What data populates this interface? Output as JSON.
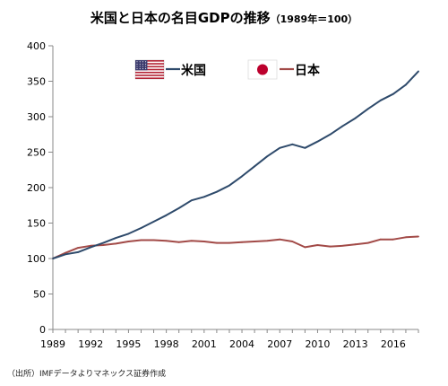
{
  "title": "米国と日本の名目GDPの推移",
  "subtitle": "（1989年＝100）",
  "source": "（出所）IMFデータよりマネックス証券作成",
  "chart_data": {
    "type": "line",
    "title": "米国と日本の名目GDPの推移（1989年＝100）",
    "xlabel": "",
    "ylabel": "",
    "x": [
      1989,
      1990,
      1991,
      1992,
      1993,
      1994,
      1995,
      1996,
      1997,
      1998,
      1999,
      2000,
      2001,
      2002,
      2003,
      2004,
      2005,
      2006,
      2007,
      2008,
      2009,
      2010,
      2011,
      2012,
      2013,
      2014,
      2015,
      2016,
      2017,
      2018
    ],
    "x_ticks": [
      1989,
      1992,
      1995,
      1998,
      2001,
      2004,
      2007,
      2010,
      2013,
      2016
    ],
    "y_ticks": [
      0,
      50,
      100,
      150,
      200,
      250,
      300,
      350,
      400
    ],
    "ylim": [
      0,
      400
    ],
    "grid": false,
    "legend_position": "top-center",
    "series": [
      {
        "name": "米国",
        "color": "#2e4a6b",
        "icon": "us-flag-icon",
        "values": [
          100,
          106,
          109,
          116,
          122,
          129,
          135,
          143,
          152,
          161,
          171,
          182,
          187,
          194,
          203,
          216,
          230,
          244,
          256,
          261,
          256,
          265,
          275,
          287,
          298,
          311,
          323,
          332,
          345,
          364
        ]
      },
      {
        "name": "日本",
        "color": "#a24a47",
        "icon": "japan-flag-icon",
        "values": [
          100,
          108,
          115,
          118,
          119,
          121,
          124,
          126,
          126,
          125,
          123,
          125,
          124,
          122,
          122,
          123,
          124,
          125,
          127,
          124,
          116,
          119,
          117,
          118,
          120,
          122,
          127,
          127,
          130,
          131
        ]
      }
    ]
  }
}
